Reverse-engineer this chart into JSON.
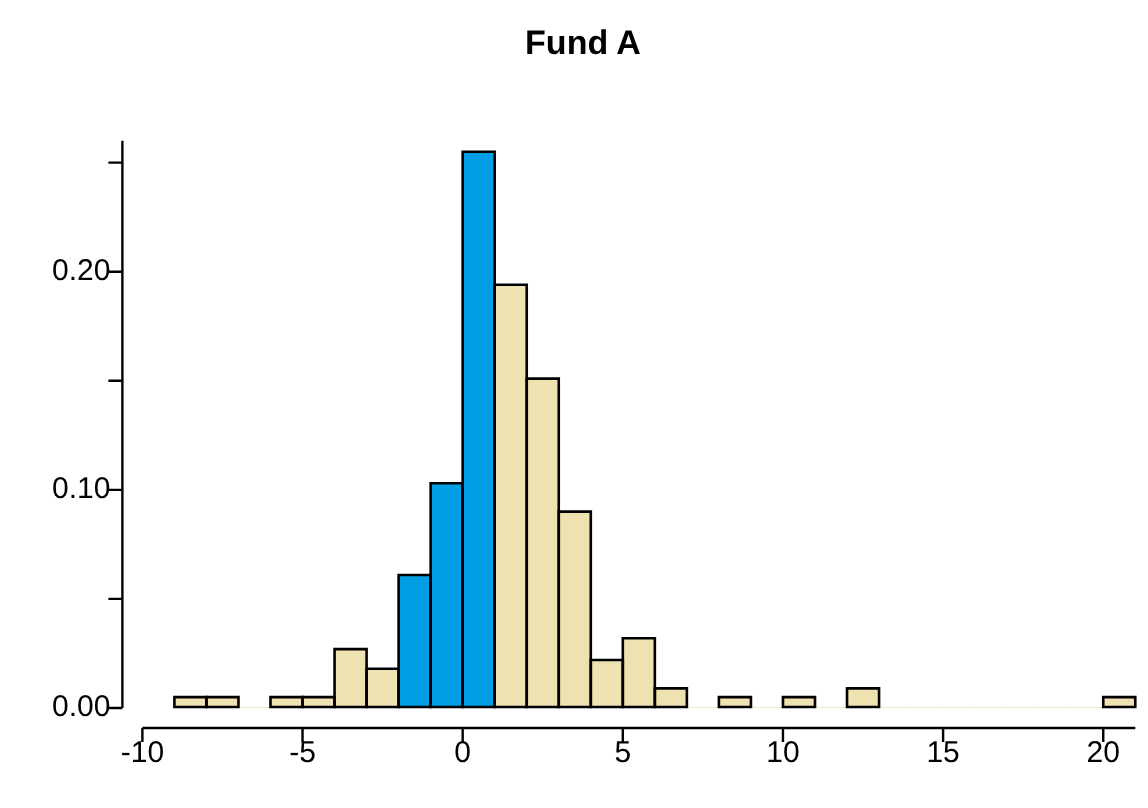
{
  "chart_data": {
    "type": "histogram",
    "title": "Fund A",
    "bins": [
      -9,
      -8,
      -7,
      -6,
      -5,
      -4,
      -3,
      -2,
      -1,
      0,
      1,
      2,
      3,
      4,
      5,
      6,
      7,
      8,
      9,
      10,
      11,
      12,
      13,
      14,
      15,
      16,
      17,
      18,
      19,
      20,
      21
    ],
    "values": [
      0.005,
      0.005,
      0,
      0.005,
      0.005,
      0.027,
      0.018,
      0.061,
      0.103,
      0.255,
      0.194,
      0.151,
      0.09,
      0.022,
      0.032,
      0.009,
      0,
      0.005,
      0,
      0.005,
      0,
      0.009,
      0,
      0,
      0,
      0,
      0,
      0,
      0,
      0.005
    ],
    "colors": [
      "#eee3b0",
      "#eee3b0",
      "#eee3b0",
      "#eee3b0",
      "#eee3b0",
      "#eee3b0",
      "#eee3b0",
      "#009fe3",
      "#009fe3",
      "#009fe3",
      "#eee3b0",
      "#eee3b0",
      "#eee3b0",
      "#eee3b0",
      "#eee3b0",
      "#eee3b0",
      "#eee3b0",
      "#eee3b0",
      "#eee3b0",
      "#eee3b0",
      "#eee3b0",
      "#eee3b0",
      "#eee3b0",
      "#eee3b0",
      "#eee3b0",
      "#eee3b0",
      "#eee3b0",
      "#eee3b0",
      "#eee3b0",
      "#eee3b0"
    ],
    "xlim": [
      -10,
      21
    ],
    "ylim": [
      0,
      0.26
    ],
    "xticks": [
      -10,
      -5,
      0,
      5,
      10,
      15,
      20
    ],
    "yticks": [
      {
        "value": 0,
        "label": "0.00"
      },
      {
        "value": 0.05,
        "label": null
      },
      {
        "value": 0.1,
        "label": "0.10"
      },
      {
        "value": 0.15,
        "label": null
      },
      {
        "value": 0.2,
        "label": "0.20"
      },
      {
        "value": 0.25,
        "label": null
      }
    ],
    "grid": false,
    "legend": false
  }
}
